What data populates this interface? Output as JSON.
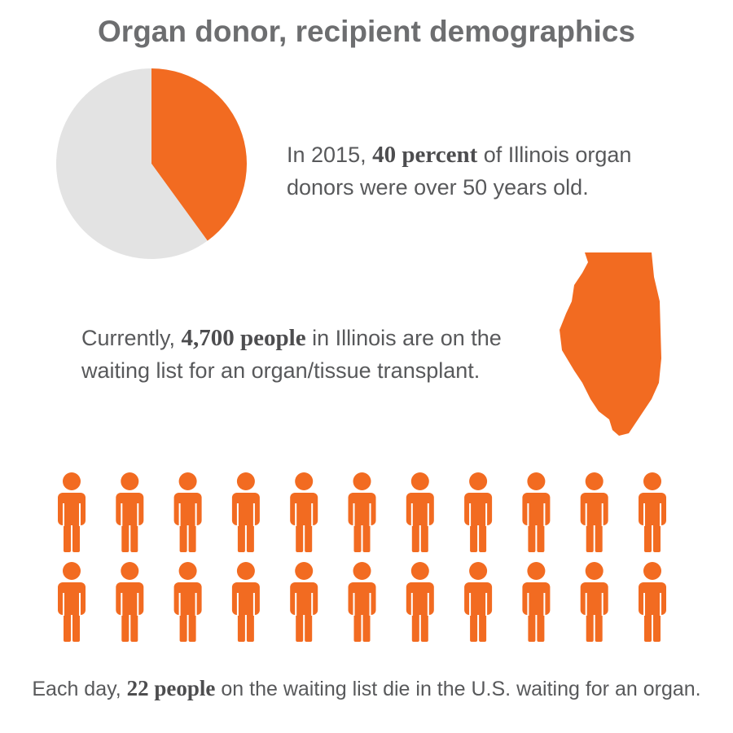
{
  "title": "Organ donor, recipient demographics",
  "chart_data": {
    "type": "pie",
    "values": [
      40,
      60
    ],
    "colors": [
      "#f26b21",
      "#e3e3e3"
    ]
  },
  "facts": [
    {
      "prefix": "In 2015,",
      "highlight": "40 percent",
      "suffix": "of Illinois organ donors were over 50 years old."
    },
    {
      "prefix": "Currently,",
      "highlight": "4,700 people",
      "suffix": "in Illinois are on the waiting list for an organ/tissue transplant."
    },
    {
      "prefix": "Each day,",
      "highlight": "22 people",
      "suffix": "on the waiting list die in the U.S. waiting for an organ."
    }
  ],
  "people": {
    "count": 22,
    "color": "#f26b21"
  }
}
